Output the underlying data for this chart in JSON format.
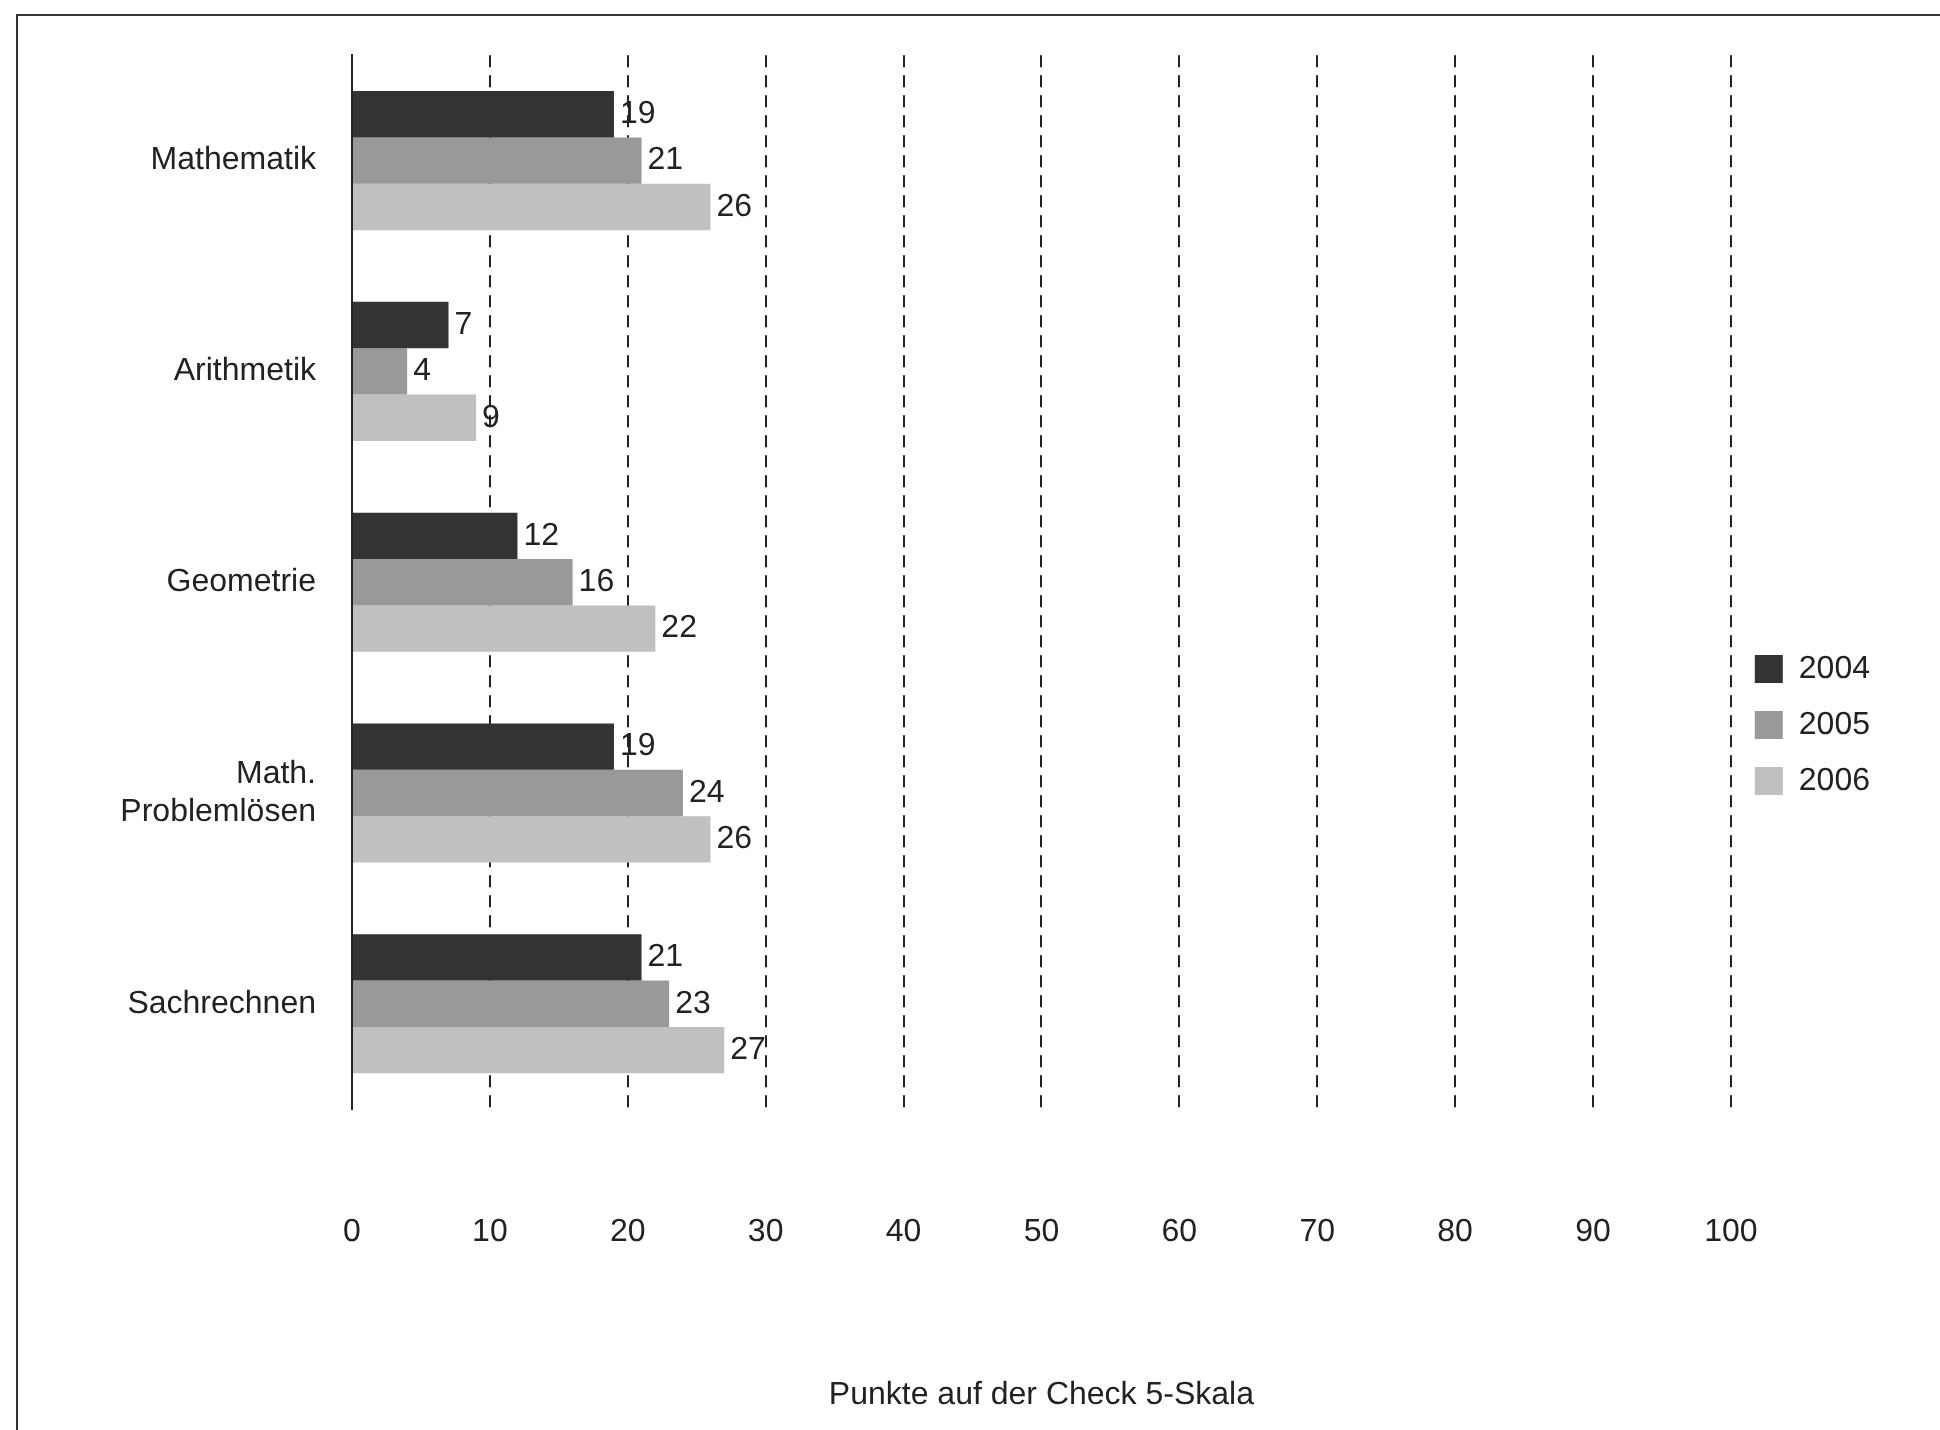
{
  "chart_data": {
    "type": "bar",
    "orientation": "horizontal",
    "xlabel": "Punkte auf der Check 5-Skala",
    "categories": [
      "Mathematik",
      "Arithmetik",
      "Geometrie",
      "Math. Problemlösen",
      "Sachrechnen"
    ],
    "series": [
      {
        "name": "2004",
        "color": "#333333",
        "values": [
          19,
          7,
          12,
          19,
          21
        ]
      },
      {
        "name": "2005",
        "color": "#999999",
        "values": [
          21,
          4,
          16,
          24,
          23
        ]
      },
      {
        "name": "2006",
        "color": "#c0c0c0",
        "values": [
          26,
          9,
          22,
          26,
          27
        ]
      }
    ],
    "xlim": [
      0,
      100
    ],
    "xticks": [
      0,
      10,
      20,
      30,
      40,
      50,
      60,
      70,
      80,
      90,
      100
    ],
    "grid": "x",
    "legend": "right",
    "data_labels": true
  }
}
